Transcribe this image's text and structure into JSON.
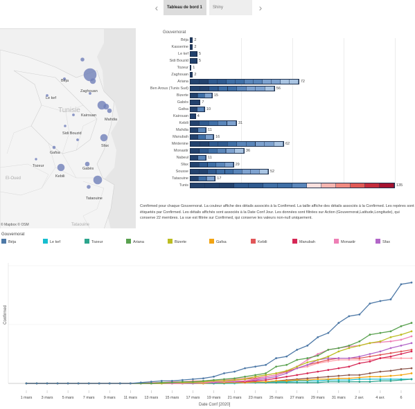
{
  "tabs": [
    {
      "label": "Tableau de bord 1",
      "active": true
    },
    {
      "label": "Shiny",
      "active": false
    }
  ],
  "nav": {
    "prev": "‹",
    "next": "›"
  },
  "map": {
    "country_label": "Tunisie",
    "neighbor_labels": [
      "El-Oued",
      "Tataouine"
    ],
    "copyright": "© Mapbox © OSM",
    "places": [
      {
        "label": "Béja"
      },
      {
        "label": "Zaghouan"
      },
      {
        "label": "Le kef"
      },
      {
        "label": "Kairouan"
      },
      {
        "label": "Mahdia"
      },
      {
        "label": "Sidi Bouzid"
      },
      {
        "label": "Sfax"
      },
      {
        "label": "Gafsa"
      },
      {
        "label": "Tozeur"
      },
      {
        "label": "Kebili"
      },
      {
        "label": "Gabès"
      },
      {
        "label": "Tataouine"
      }
    ]
  },
  "bar_chart": {
    "header": "Gouvernorat",
    "rows": [
      {
        "name": "Béja",
        "value": 2
      },
      {
        "name": "Kasserine",
        "value": 2
      },
      {
        "name": "Le kef",
        "value": 5
      },
      {
        "name": "Sidi Bouzid",
        "value": 5
      },
      {
        "name": "Tozeur",
        "value": 1
      },
      {
        "name": "Zaghouan",
        "value": 2
      },
      {
        "name": "Ariana",
        "value": 72
      },
      {
        "name": "Ben Arous (Tunis Sud)",
        "value": 56
      },
      {
        "name": "Bizerte",
        "value": 15
      },
      {
        "name": "Gabès",
        "value": 7
      },
      {
        "name": "Gafsa",
        "value": 10
      },
      {
        "name": "Kairouan",
        "value": 4
      },
      {
        "name": "Kebili",
        "value": 31
      },
      {
        "name": "Mahdia",
        "value": 11
      },
      {
        "name": "Manubah",
        "value": 16
      },
      {
        "name": "Médenine",
        "value": 62
      },
      {
        "name": "Monastir",
        "value": 36
      },
      {
        "name": "Nabeul",
        "value": 11
      },
      {
        "name": "Sfax",
        "value": 29
      },
      {
        "name": "Sousse",
        "value": 52
      },
      {
        "name": "Tataouine",
        "value": 17
      },
      {
        "name": "Tunis",
        "value": 135
      }
    ],
    "max": 135
  },
  "caption": "Confirmed pour chaque Gouvernorat. La couleur affiche des détails associés à la Confirmed. La taille affiche des détails associés à la Confirmed. Les repères sont étiquetés par Confirmed. Les détails affichés sont associés à la Date Conf Jour. Les données sont filtrées sur Action (Gouvernorat,Latitude,Longitude), qui conserve 22 membres. La vue est filtrée sur Confirmed, qui conserve les valeurs non-null uniquement.",
  "legend": {
    "title": "Gouvernorat",
    "items": [
      {
        "label": "Béja",
        "color": "#4e79a7"
      },
      {
        "label": "Le kef",
        "color": "#17becf"
      },
      {
        "label": "Tozeur",
        "color": "#2ca58d"
      },
      {
        "label": "Ariana",
        "color": "#59a14f"
      },
      {
        "label": "Bizerte",
        "color": "#bcbd22"
      },
      {
        "label": "Gafsa",
        "color": "#f2a413"
      },
      {
        "label": "Kebili",
        "color": "#e15759"
      },
      {
        "label": "Manubah",
        "color": "#d62755"
      },
      {
        "label": "Monastir",
        "color": "#ee7fb5"
      },
      {
        "label": "Sfax",
        "color": "#b266c8"
      }
    ]
  },
  "chart_data": {
    "type": "line",
    "xlabel": "Date Conf [2020]",
    "ylabel": "Confirmed",
    "x_ticks": [
      "1 mars",
      "3 mars",
      "5 mars",
      "7 mars",
      "9 mars",
      "11 mars",
      "13 mars",
      "15 mars",
      "17 mars",
      "19 mars",
      "21 mars",
      "23 mars",
      "25 mars",
      "27 mars",
      "29 mars",
      "31 mars",
      "2 avr.",
      "4 avr.",
      "6"
    ],
    "n_days": 38,
    "ylim": [
      0,
      140
    ],
    "series": [
      {
        "color": "#4e79a7",
        "values": [
          0,
          0,
          0,
          0,
          0,
          0,
          0,
          0,
          0,
          0,
          0,
          1,
          2,
          3,
          3,
          4,
          5,
          6,
          8,
          12,
          14,
          18,
          20,
          22,
          30,
          32,
          40,
          45,
          55,
          60,
          72,
          80,
          82,
          95,
          98,
          100,
          118,
          120
        ]
      },
      {
        "color": "#59a14f",
        "values": [
          0,
          0,
          0,
          0,
          0,
          0,
          0,
          0,
          0,
          0,
          0,
          0,
          0,
          1,
          1,
          2,
          2,
          3,
          4,
          5,
          6,
          8,
          10,
          12,
          20,
          22,
          28,
          30,
          33,
          40,
          42,
          45,
          50,
          58,
          60,
          62,
          68,
          72
        ]
      },
      {
        "color": "#bcbd22",
        "values": [
          0,
          0,
          0,
          0,
          0,
          0,
          0,
          0,
          0,
          0,
          0,
          0,
          0,
          0,
          1,
          1,
          1,
          2,
          3,
          3,
          4,
          5,
          8,
          10,
          12,
          15,
          20,
          25,
          28,
          32,
          38,
          42,
          45,
          48,
          50,
          55,
          58,
          62
        ]
      },
      {
        "color": "#ee7fb5",
        "values": [
          0,
          0,
          0,
          0,
          0,
          0,
          0,
          0,
          0,
          0,
          0,
          0,
          0,
          0,
          0,
          0,
          1,
          1,
          2,
          2,
          3,
          3,
          5,
          8,
          10,
          15,
          20,
          28,
          35,
          40,
          42,
          44,
          45,
          48,
          49,
          50,
          52,
          56
        ]
      },
      {
        "color": "#b266c8",
        "values": [
          0,
          0,
          0,
          0,
          0,
          0,
          0,
          0,
          0,
          0,
          0,
          0,
          0,
          0,
          0,
          0,
          0,
          1,
          1,
          2,
          2,
          3,
          4,
          6,
          8,
          12,
          18,
          22,
          28,
          30,
          30,
          30,
          32,
          35,
          38,
          42,
          45,
          48
        ]
      },
      {
        "color": "#e15759",
        "values": [
          0,
          0,
          0,
          0,
          0,
          0,
          0,
          0,
          0,
          0,
          0,
          0,
          0,
          1,
          1,
          1,
          2,
          2,
          2,
          3,
          4,
          5,
          6,
          8,
          10,
          14,
          18,
          22,
          25,
          28,
          30,
          30,
          30,
          32,
          34,
          36,
          38,
          40
        ]
      },
      {
        "color": "#d62755",
        "values": [
          0,
          0,
          0,
          0,
          0,
          0,
          0,
          0,
          0,
          0,
          0,
          0,
          0,
          0,
          0,
          0,
          1,
          1,
          1,
          2,
          2,
          2,
          3,
          4,
          6,
          8,
          10,
          12,
          14,
          16,
          18,
          20,
          24,
          26,
          30,
          32,
          35,
          38
        ]
      },
      {
        "color": "#f2a413",
        "values": [
          0,
          0,
          0,
          0,
          0,
          0,
          0,
          0,
          0,
          0,
          0,
          0,
          0,
          0,
          0,
          0,
          0,
          0,
          1,
          1,
          1,
          1,
          2,
          2,
          3,
          3,
          4,
          4,
          5,
          5,
          6,
          6,
          7,
          8,
          8,
          9,
          10,
          12
        ]
      },
      {
        "color": "#2ca58d",
        "values": [
          0,
          0,
          0,
          0,
          0,
          0,
          0,
          0,
          0,
          0,
          0,
          0,
          0,
          0,
          0,
          0,
          0,
          0,
          0,
          0,
          1,
          1,
          1,
          1,
          1,
          1,
          1,
          1,
          1,
          2,
          2,
          2,
          2,
          2,
          3,
          3,
          4,
          5
        ]
      },
      {
        "color": "#17becf",
        "values": [
          0,
          0,
          0,
          0,
          0,
          0,
          0,
          0,
          0,
          0,
          0,
          0,
          0,
          0,
          0,
          0,
          0,
          0,
          0,
          0,
          0,
          1,
          1,
          1,
          2,
          2,
          3,
          3,
          3,
          4,
          4,
          4,
          5,
          5,
          5,
          5,
          5,
          5
        ]
      },
      {
        "color": "#8c564b",
        "values": [
          0,
          0,
          0,
          0,
          0,
          0,
          0,
          0,
          0,
          0,
          0,
          0,
          0,
          0,
          0,
          0,
          0,
          0,
          0,
          1,
          1,
          1,
          2,
          2,
          3,
          4,
          5,
          6,
          7,
          8,
          9,
          10,
          10,
          12,
          14,
          15,
          17,
          18
        ]
      },
      {
        "color": "#ff9da7",
        "values": [
          0,
          0,
          0,
          0,
          0,
          0,
          0,
          0,
          0,
          0,
          0,
          0,
          1,
          1,
          2,
          2,
          3,
          3,
          4,
          4,
          5,
          6,
          8,
          10,
          12,
          14,
          18,
          20,
          24,
          26,
          28,
          28,
          28,
          28,
          30,
          30,
          30,
          30
        ]
      }
    ]
  }
}
